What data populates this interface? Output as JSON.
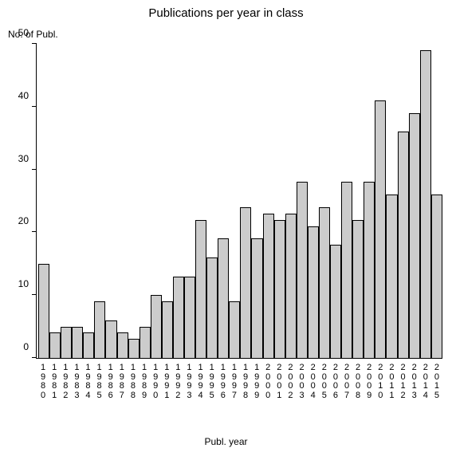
{
  "chart": {
    "type": "bar",
    "title": "Publications per year in class",
    "title_fontsize": 15,
    "ylabel": "No. of Publ.",
    "xlabel": "Publ. year",
    "label_fontsize": 12,
    "background_color": "#ffffff",
    "bar_fill": "#cccccc",
    "bar_border": "#000000",
    "axis_color": "#000000",
    "text_color": "#000000",
    "ylim": [
      0,
      50
    ],
    "yticks": [
      0,
      10,
      20,
      30,
      40,
      50
    ],
    "categories": [
      "1980",
      "1981",
      "1982",
      "1983",
      "1984",
      "1985",
      "1986",
      "1987",
      "1988",
      "1989",
      "1990",
      "1991",
      "1992",
      "1993",
      "1994",
      "1995",
      "1996",
      "1997",
      "1998",
      "1999",
      "2000",
      "2001",
      "2002",
      "2003",
      "2004",
      "2005",
      "2006",
      "2007",
      "2008",
      "2009",
      "2010",
      "2011",
      "2012",
      "2013",
      "2014",
      "2015"
    ],
    "values": [
      15,
      4,
      5,
      5,
      4,
      9,
      6,
      4,
      3,
      5,
      10,
      9,
      13,
      13,
      22,
      16,
      19,
      9,
      24,
      19,
      23,
      22,
      23,
      28,
      21,
      24,
      18,
      28,
      22,
      28,
      41,
      26,
      36,
      39,
      49,
      26
    ]
  }
}
